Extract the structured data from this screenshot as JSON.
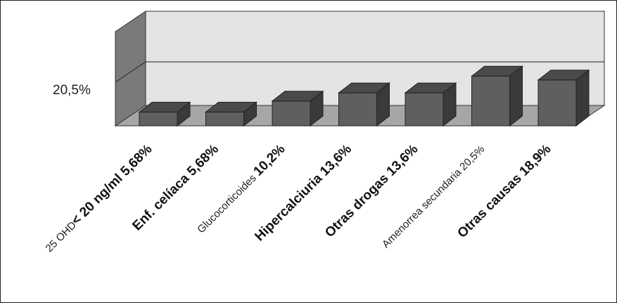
{
  "chart_data": {
    "type": "bar",
    "style": "3d",
    "title": "",
    "xlabel": "",
    "ylabel": "",
    "y_tick_labels": [
      "20,5%"
    ],
    "ylim": [
      0,
      40
    ],
    "grid": true,
    "legend": "none",
    "colors": {
      "bar_front": "#5f5f5f",
      "bar_top": "#4a4a4a",
      "bar_side": "#3a3a3a",
      "back_wall": "#e4e4e4",
      "side_wall": "#7a7a7a",
      "floor": "#a6a6a6"
    },
    "categories": [
      {
        "label_prefix": "25 OHD",
        "label_bold": "< 20 ng/ml 5,68%",
        "value": 5.68
      },
      {
        "label_prefix": "",
        "label_bold": "Enf. celíaca 5,68%",
        "value": 5.68
      },
      {
        "label_prefix": "Glucocorticoides ",
        "label_bold": "10,2%",
        "value": 10.2
      },
      {
        "label_prefix": "",
        "label_bold": "Hipercalciuria 13,6%",
        "value": 13.6
      },
      {
        "label_prefix": "",
        "label_bold": "Otras drogas 13,6%",
        "value": 13.6
      },
      {
        "label_prefix": "Amenorrea secundaria 20,5%",
        "label_bold": "",
        "value": 20.5
      },
      {
        "label_prefix": "",
        "label_bold": "Otras causas 18,9%",
        "value": 18.9
      }
    ]
  }
}
